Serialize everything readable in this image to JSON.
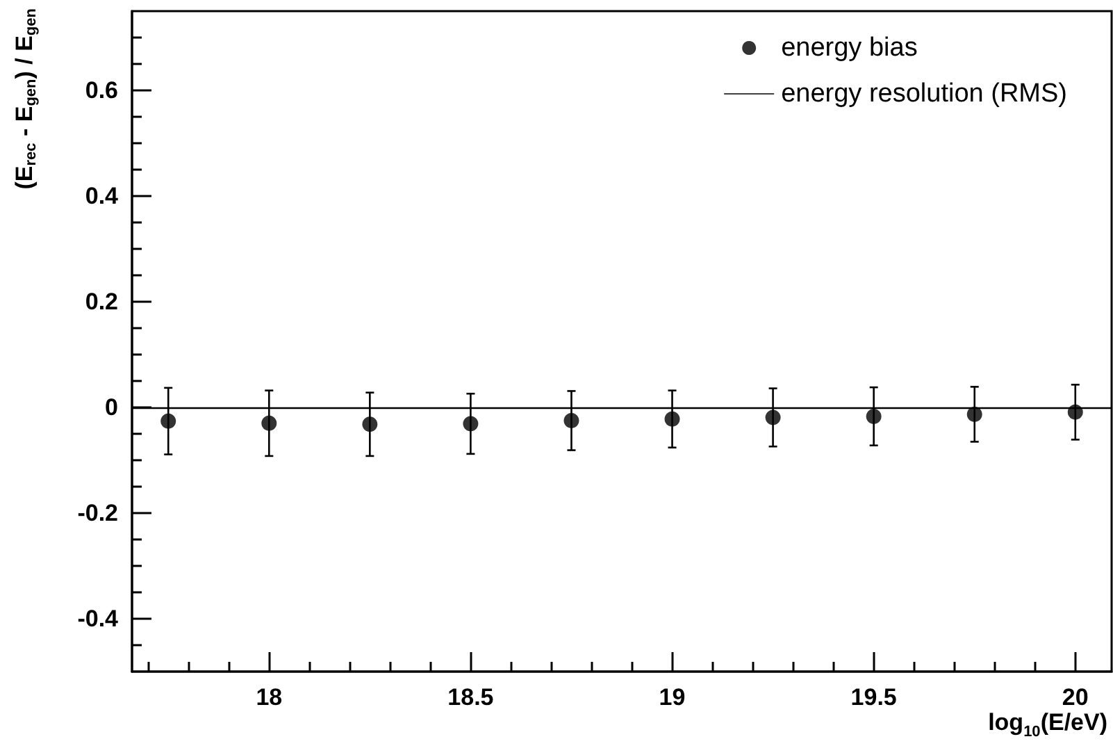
{
  "chart_data": {
    "type": "scatter",
    "xlabel": "log$_{10}$(E/eV)",
    "ylabel": "(E$_{rec}$ - E$_{gen}$) / E$_{gen}$",
    "x": [
      17.75,
      18.0,
      18.25,
      18.5,
      18.75,
      19.0,
      19.25,
      19.5,
      19.75,
      20.0
    ],
    "series": [
      {
        "name": "energy bias",
        "color": "#000000",
        "values": [
          -0.026,
          -0.03,
          -0.032,
          -0.031,
          -0.025,
          -0.022,
          -0.019,
          -0.017,
          -0.013,
          -0.009
        ],
        "errors": [
          0.063,
          0.062,
          0.06,
          0.057,
          0.056,
          0.054,
          0.055,
          0.055,
          0.052,
          0.052
        ]
      }
    ],
    "ref_lines": [
      {
        "axis": "y",
        "value": 0,
        "label": "energy resolution (RMS)",
        "color": "#000000",
        "line_style": "solid"
      }
    ],
    "marker": "circle",
    "xlim": [
      17.66,
      20.09
    ],
    "ylim": [
      -0.5,
      0.75
    ],
    "xticks": [
      {
        "value": 17.7,
        "label": null
      },
      {
        "value": 17.8,
        "label": null
      },
      {
        "value": 17.9,
        "label": null
      },
      18,
      {
        "value": 18.1,
        "label": null
      },
      {
        "value": 18.2,
        "label": null
      },
      {
        "value": 18.3,
        "label": null
      },
      {
        "value": 18.4,
        "label": null
      },
      18.5,
      {
        "value": 18.6,
        "label": null
      },
      {
        "value": 18.7,
        "label": null
      },
      {
        "value": 18.8,
        "label": null
      },
      {
        "value": 18.9,
        "label": null
      },
      19,
      {
        "value": 19.1,
        "label": null
      },
      {
        "value": 19.2,
        "label": null
      },
      {
        "value": 19.3,
        "label": null
      },
      {
        "value": 19.4,
        "label": null
      },
      19.5,
      {
        "value": 19.6,
        "label": null
      },
      {
        "value": 19.7,
        "label": null
      },
      {
        "value": 19.8,
        "label": null
      },
      {
        "value": 19.9,
        "label": null
      },
      20
    ],
    "yticks": [
      {
        "value": -0.45,
        "label": null
      },
      -0.4,
      {
        "value": -0.35,
        "label": null
      },
      {
        "value": -0.3,
        "label": null
      },
      {
        "value": -0.25,
        "label": null
      },
      -0.2,
      {
        "value": -0.15,
        "label": null
      },
      {
        "value": -0.1,
        "label": null
      },
      {
        "value": -0.05,
        "label": null
      },
      0,
      {
        "value": 0.05,
        "label": null
      },
      {
        "value": 0.1,
        "label": null
      },
      {
        "value": 0.15,
        "label": null
      },
      0.2,
      {
        "value": 0.25,
        "label": null
      },
      {
        "value": 0.3,
        "label": null
      },
      {
        "value": 0.35,
        "label": null
      },
      0.4,
      {
        "value": 0.45,
        "label": null
      },
      {
        "value": 0.5,
        "label": null
      },
      {
        "value": 0.55,
        "label": null
      },
      0.6,
      {
        "value": 0.65,
        "label": null
      },
      {
        "value": 0.7,
        "label": null
      }
    ],
    "grid": false,
    "legend": "top right"
  }
}
